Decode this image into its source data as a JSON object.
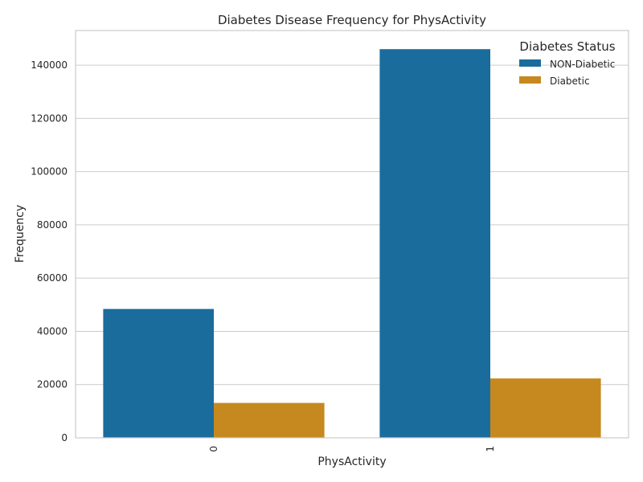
{
  "chart_data": {
    "type": "bar",
    "title": "Diabetes Disease Frequency for PhysActivity",
    "xlabel": "PhysActivity",
    "ylabel": "Frequency",
    "categories": [
      "0",
      "1"
    ],
    "series": [
      {
        "name": "NON-Diabetic",
        "color": "#1a6c9c",
        "values": [
          48400,
          146000
        ]
      },
      {
        "name": "Diabetic",
        "color": "#c5891f",
        "values": [
          13100,
          22300
        ]
      }
    ],
    "ylim": [
      0,
      153000
    ],
    "yticks": [
      0,
      20000,
      40000,
      60000,
      80000,
      100000,
      120000,
      140000
    ],
    "ytick_labels": [
      "0",
      "20000",
      "40000",
      "60000",
      "80000",
      "100000",
      "120000",
      "140000"
    ],
    "legend": {
      "title": "Diabetes Status",
      "position": "top-right"
    },
    "grid": true,
    "xtick_rotation": 90
  }
}
